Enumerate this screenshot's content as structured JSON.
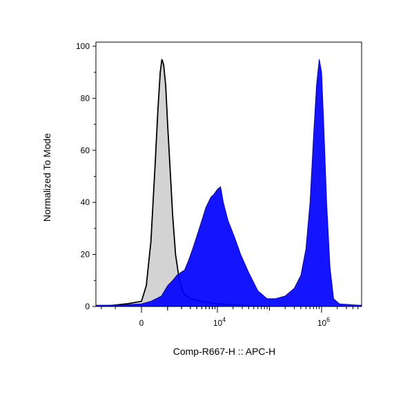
{
  "chart_data": {
    "type": "area",
    "xlabel": "Comp-R667-H :: APC-H",
    "ylabel": "Normalized To Mode",
    "ylim": [
      0,
      100
    ],
    "x_scale": "biexponential",
    "y_ticks": [
      0,
      20,
      40,
      60,
      80,
      100
    ],
    "x_tick_labels": [
      {
        "base": "0",
        "exp": "",
        "value": 0
      },
      {
        "base": "10",
        "exp": "4",
        "value": 10000
      },
      {
        "base": "10",
        "exp": "6",
        "value": 1000000
      }
    ],
    "series": [
      {
        "fill": "#d3d3d3",
        "stroke": "#000000",
        "points": [
          [
            -2000,
            0
          ],
          [
            -500,
            1
          ],
          [
            0,
            2
          ],
          [
            150,
            8
          ],
          [
            300,
            25
          ],
          [
            450,
            55
          ],
          [
            550,
            75
          ],
          [
            650,
            90
          ],
          [
            720,
            95
          ],
          [
            800,
            93
          ],
          [
            900,
            85
          ],
          [
            1000,
            70
          ],
          [
            1150,
            52
          ],
          [
            1300,
            35
          ],
          [
            1500,
            20
          ],
          [
            1800,
            10
          ],
          [
            2200,
            5
          ],
          [
            3000,
            3
          ],
          [
            5000,
            2
          ],
          [
            10000,
            1
          ],
          [
            30000,
            0.5
          ],
          [
            100000,
            0
          ]
        ]
      },
      {
        "fill": "#0000ff",
        "stroke": "#0000cc",
        "points": [
          [
            -60000,
            8
          ],
          [
            -50000,
            4
          ],
          [
            -40000,
            1
          ],
          [
            -20000,
            0.5
          ],
          [
            -5000,
            0.5
          ],
          [
            -1000,
            0.5
          ],
          [
            0,
            1
          ],
          [
            300,
            2
          ],
          [
            700,
            4
          ],
          [
            1000,
            8
          ],
          [
            1300,
            10
          ],
          [
            1600,
            12
          ],
          [
            1900,
            13
          ],
          [
            2300,
            14
          ],
          [
            2800,
            18
          ],
          [
            3300,
            22
          ],
          [
            4000,
            27
          ],
          [
            5000,
            33
          ],
          [
            6000,
            38
          ],
          [
            7500,
            42
          ],
          [
            8500,
            43
          ],
          [
            10000,
            45
          ],
          [
            11500,
            46
          ],
          [
            13000,
            40
          ],
          [
            16000,
            33
          ],
          [
            21000,
            27
          ],
          [
            28000,
            20
          ],
          [
            40000,
            13
          ],
          [
            60000,
            6
          ],
          [
            90000,
            3
          ],
          [
            130000,
            3
          ],
          [
            200000,
            4
          ],
          [
            300000,
            7
          ],
          [
            400000,
            12
          ],
          [
            500000,
            22
          ],
          [
            600000,
            40
          ],
          [
            700000,
            65
          ],
          [
            800000,
            85
          ],
          [
            900000,
            95
          ],
          [
            1000000,
            90
          ],
          [
            1100000,
            70
          ],
          [
            1250000,
            40
          ],
          [
            1450000,
            15
          ],
          [
            1700000,
            3
          ],
          [
            2200000,
            1
          ],
          [
            5000000,
            0.5
          ],
          [
            30000000,
            0.5
          ],
          [
            270000000,
            0.5
          ]
        ]
      }
    ]
  }
}
